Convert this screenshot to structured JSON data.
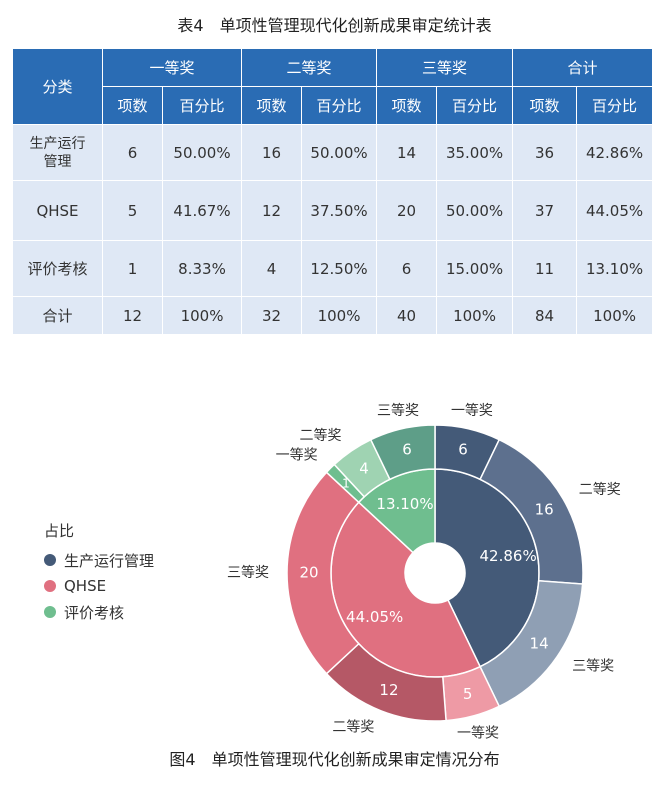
{
  "table": {
    "title": "表4　单项性管理现代化创新成果审定统计表",
    "corner": "分类",
    "groups": [
      "一等奖",
      "二等奖",
      "三等奖",
      "合计"
    ],
    "sub": [
      "项数",
      "百分比"
    ],
    "rows": [
      {
        "cat": "生产运行管理",
        "cells": [
          "6",
          "50.00%",
          "16",
          "50.00%",
          "14",
          "35.00%",
          "36",
          "42.86%"
        ]
      },
      {
        "cat": "QHSE",
        "cells": [
          "5",
          "41.67%",
          "12",
          "37.50%",
          "20",
          "50.00%",
          "37",
          "44.05%"
        ]
      },
      {
        "cat": "评价考核",
        "cells": [
          "1",
          "8.33%",
          "4",
          "12.50%",
          "6",
          "15.00%",
          "11",
          "13.10%"
        ]
      },
      {
        "cat": "合计",
        "cells": [
          "12",
          "100%",
          "32",
          "100%",
          "40",
          "100%",
          "84",
          "100%"
        ]
      }
    ]
  },
  "figure_title": "图4　单项性管理现代化创新成果审定情况分布",
  "legend": {
    "title": "占比",
    "items": [
      {
        "label": "生产运行管理",
        "color": "#445a78"
      },
      {
        "label": "QHSE",
        "color": "#e07080"
      },
      {
        "label": "评价考核",
        "color": "#6fbe8f"
      }
    ]
  },
  "chart_data": {
    "type": "pie",
    "inner": [
      {
        "name": "生产运行管理",
        "value": 36,
        "label": "42.86%",
        "color": "#445a78"
      },
      {
        "name": "QHSE",
        "value": 37,
        "label": "44.05%",
        "color": "#e07080"
      },
      {
        "name": "评价考核",
        "value": 11,
        "label": "13.10%",
        "color": "#6fbe8f"
      }
    ],
    "outer": [
      {
        "parent": "生产运行管理",
        "name": "一等奖",
        "value": 6,
        "color": "#445a78"
      },
      {
        "parent": "生产运行管理",
        "name": "二等奖",
        "value": 16,
        "color": "#5d708e"
      },
      {
        "parent": "生产运行管理",
        "name": "三等奖",
        "value": 14,
        "color": "#8f9fb4"
      },
      {
        "parent": "QHSE",
        "name": "一等奖",
        "value": 5,
        "color": "#ee9aa5"
      },
      {
        "parent": "QHSE",
        "name": "二等奖",
        "value": 12,
        "color": "#b55866"
      },
      {
        "parent": "QHSE",
        "name": "三等奖",
        "value": 20,
        "color": "#e07080"
      },
      {
        "parent": "评价考核",
        "name": "一等奖",
        "value": 1,
        "color": "#6fbe8f"
      },
      {
        "parent": "评价考核",
        "name": "二等奖",
        "value": 4,
        "color": "#9fd3b2"
      },
      {
        "parent": "评价考核",
        "name": "三等奖",
        "value": 6,
        "color": "#5e9e88"
      }
    ]
  }
}
